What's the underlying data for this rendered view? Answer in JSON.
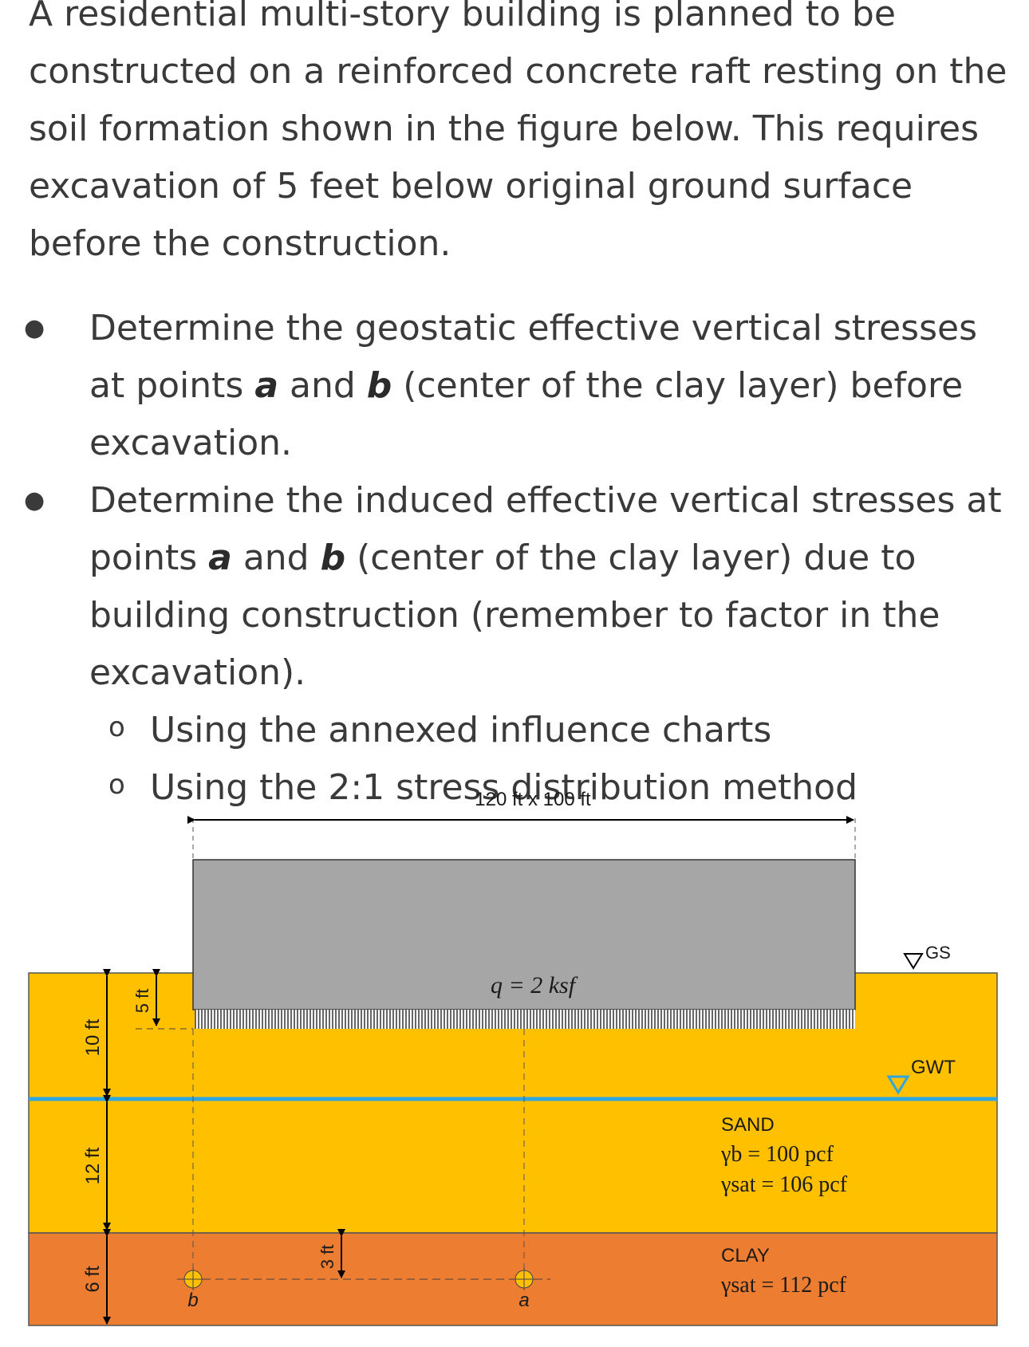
{
  "intro": "A residential multi-story building is planned to be constructed on a reinforced concrete raft resting on the soil formation shown in the figure below. This requires excavation of 5 feet below original ground surface before the construction.",
  "tasks": [
    {
      "pre": "Determine the geostatic effective vertical stresses at points ",
      "a": "a",
      "mid": " and ",
      "b": "b",
      "post": " (center of the clay layer) before excavation."
    },
    {
      "pre": "Determine the induced effective vertical stresses at points ",
      "a": "a",
      "mid": " and ",
      "b": "b",
      "post": " (center of the clay layer) due to building construction (remember to factor in the excavation)."
    }
  ],
  "methods": [
    "Using the annexed influence charts",
    "Using the 2:1 stress distribution method"
  ],
  "figure": {
    "raft_dims": "120 ft x 100 ft",
    "load": "q = 2 ksf",
    "gs_label": "GS",
    "gwt_label": "GWT",
    "dim_10": "10 ft",
    "dim_12": "12 ft",
    "dim_6": "6 ft",
    "dim_5": "5 ft",
    "dim_3": "3 ft",
    "sand_label": "SAND",
    "sand_gamma_b": "γb = 100 pcf",
    "sand_gamma_sat": "γsat = 106 pcf",
    "clay_label": "CLAY",
    "clay_gamma_sat": "γsat = 112 pcf",
    "point_a": "a",
    "point_b": "b"
  },
  "colors": {
    "sand": "#FFC000",
    "clay": "#ED7D31",
    "raft": "#A6A6A6",
    "water": "#2EA7E0"
  }
}
